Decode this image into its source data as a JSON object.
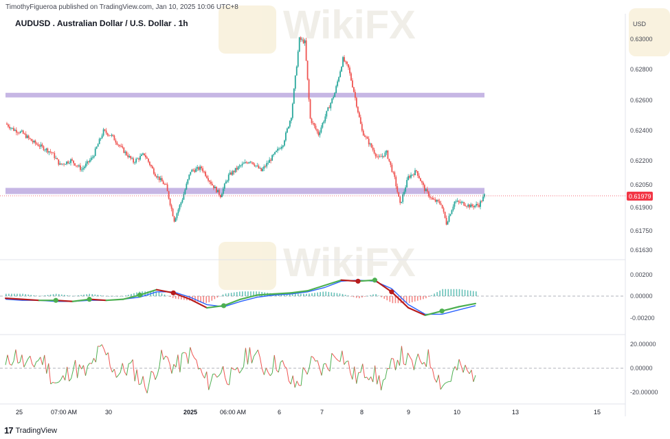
{
  "header": {
    "publisher": "TimothyFigueroa published on TradingView.com, Jan 10, 2025 10:06 UTC+8",
    "symbol_title": "AUDUSD . Australian Dollar / U.S. Dollar . 1h",
    "currency": "USD"
  },
  "footer": {
    "logo_text": "TradingView"
  },
  "watermark": {
    "text": "WikiFX"
  },
  "colors": {
    "up": "#26a69a",
    "down": "#ef5350",
    "zone": "#b39ddb",
    "macd": "#2962ff",
    "signal_up": "#4caf50",
    "signal_down": "#b71c1c",
    "hist_up": "#26a69a",
    "hist_down": "#ef5350",
    "price_tag": "#f23645",
    "osc_up": "#4caf50",
    "osc_down": "#ef5350"
  },
  "chart_data": [
    {
      "type": "candlestick",
      "title": "AUDUSD . Australian Dollar / U.S. Dollar . 1h",
      "y_ticks": [
        "0.63000",
        "0.62800",
        "0.62600",
        "0.62400",
        "0.62200",
        "0.62050",
        "0.61900",
        "0.61750",
        "0.61630"
      ],
      "x_ticks": [
        "25",
        "07:00 AM",
        "30",
        "2025",
        "06:00 AM",
        "6",
        "7",
        "8",
        "9",
        "10",
        "13",
        "15"
      ],
      "last_price": "0.61979",
      "zones": [
        {
          "from": 0.6262,
          "to": 0.6265
        },
        {
          "from": 0.6199,
          "to": 0.6203
        }
      ],
      "close_path": [
        [
          0,
          0.6245
        ],
        [
          6,
          0.6241
        ],
        [
          12,
          0.6239
        ],
        [
          20,
          0.6233
        ],
        [
          28,
          0.6229
        ],
        [
          34,
          0.6226
        ],
        [
          40,
          0.6218
        ],
        [
          48,
          0.6221
        ],
        [
          56,
          0.6215
        ],
        [
          64,
          0.6223
        ],
        [
          72,
          0.624
        ],
        [
          78,
          0.6237
        ],
        [
          86,
          0.6228
        ],
        [
          94,
          0.622
        ],
        [
          102,
          0.6225
        ],
        [
          110,
          0.6212
        ],
        [
          118,
          0.6204
        ],
        [
          124,
          0.6182
        ],
        [
          130,
          0.6196
        ],
        [
          136,
          0.6214
        ],
        [
          144,
          0.6216
        ],
        [
          152,
          0.6205
        ],
        [
          158,
          0.6198
        ],
        [
          164,
          0.6211
        ],
        [
          172,
          0.6217
        ],
        [
          180,
          0.6221
        ],
        [
          188,
          0.6214
        ],
        [
          196,
          0.6223
        ],
        [
          204,
          0.6232
        ],
        [
          210,
          0.625
        ],
        [
          216,
          0.63
        ],
        [
          220,
          0.6298
        ],
        [
          224,
          0.6248
        ],
        [
          230,
          0.6238
        ],
        [
          236,
          0.6252
        ],
        [
          242,
          0.6265
        ],
        [
          248,
          0.6287
        ],
        [
          252,
          0.6281
        ],
        [
          256,
          0.6266
        ],
        [
          262,
          0.624
        ],
        [
          268,
          0.6231
        ],
        [
          274,
          0.6222
        ],
        [
          280,
          0.6226
        ],
        [
          286,
          0.6209
        ],
        [
          290,
          0.6192
        ],
        [
          296,
          0.621
        ],
        [
          302,
          0.6214
        ],
        [
          308,
          0.6202
        ],
        [
          314,
          0.6195
        ],
        [
          320,
          0.6193
        ],
        [
          324,
          0.618
        ],
        [
          330,
          0.6194
        ],
        [
          336,
          0.6193
        ],
        [
          342,
          0.6191
        ],
        [
          348,
          0.6192
        ],
        [
          352,
          0.6198
        ]
      ],
      "panes": [
        "price",
        "macd",
        "oscillator"
      ]
    },
    {
      "type": "line",
      "title": "",
      "y_ticks": [
        "0.00200",
        "0.00000",
        "-0.00200"
      ],
      "series": [
        {
          "values": [
            -0.0002,
            -0.0003,
            -0.0004,
            -0.0004,
            -0.0005,
            -0.0003,
            -0.0004,
            -0.0003,
            0.0001,
            0.0006,
            0.0003,
            -0.0003,
            -0.0011,
            -0.0009,
            -0.0003,
            0.0001,
            0.0002,
            0.0003,
            0.0005,
            0.001,
            0.0015,
            0.0014,
            0.0015,
            0.0004,
            -0.0011,
            -0.0018,
            -0.0014,
            -0.001,
            -0.0007
          ]
        },
        {
          "values": [
            -0.0003,
            -0.0004,
            -0.0004,
            -0.0005,
            -0.0005,
            -0.0004,
            -0.0004,
            -0.0003,
            -0.0001,
            0.0004,
            0.0004,
            -0.0001,
            -0.0008,
            -0.001,
            -0.0005,
            -0.0001,
            0.0001,
            0.0002,
            0.0004,
            0.0008,
            0.0014,
            0.0015,
            0.0014,
            0.0007,
            -0.0008,
            -0.0017,
            -0.0017,
            -0.0013,
            -0.0009
          ]
        }
      ]
    },
    {
      "type": "line",
      "title": "",
      "y_ticks": [
        "20.00000",
        "0.00000",
        "-20.00000"
      ]
    }
  ]
}
